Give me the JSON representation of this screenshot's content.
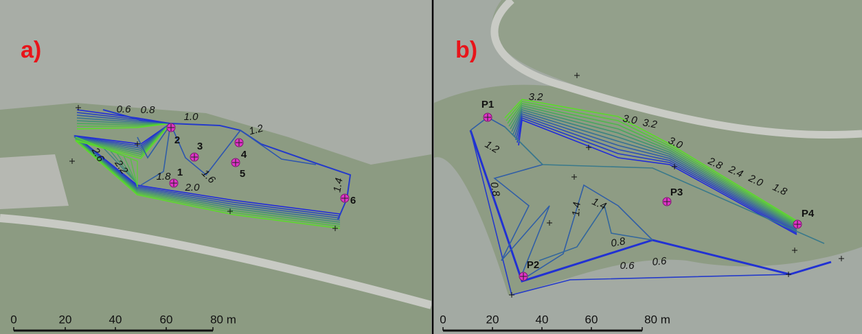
{
  "panels": [
    {
      "label": "a)",
      "points": [
        "1",
        "2",
        "3",
        "4",
        "5",
        "6"
      ],
      "contour_labels": [
        "0.6",
        "0.8",
        "1.0",
        "1.2",
        "2.6",
        "2.2",
        "1.8",
        "1.6",
        "2.0",
        "1.4"
      ],
      "scale_labels": [
        "0",
        "20",
        "40",
        "60",
        "80 m"
      ]
    },
    {
      "label": "b)",
      "points": [
        "P1",
        "P2",
        "P3",
        "P4"
      ],
      "contour_labels": [
        "3.2",
        "3.0",
        "3.2",
        "3.0",
        "2.8",
        "2.4",
        "2.0",
        "1.8",
        "1.2",
        "0.8",
        "1.4",
        "1.4",
        "0.8",
        "0.6",
        "0.6"
      ],
      "scale_labels": [
        "0",
        "20",
        "40",
        "60",
        "80 m"
      ]
    }
  ]
}
